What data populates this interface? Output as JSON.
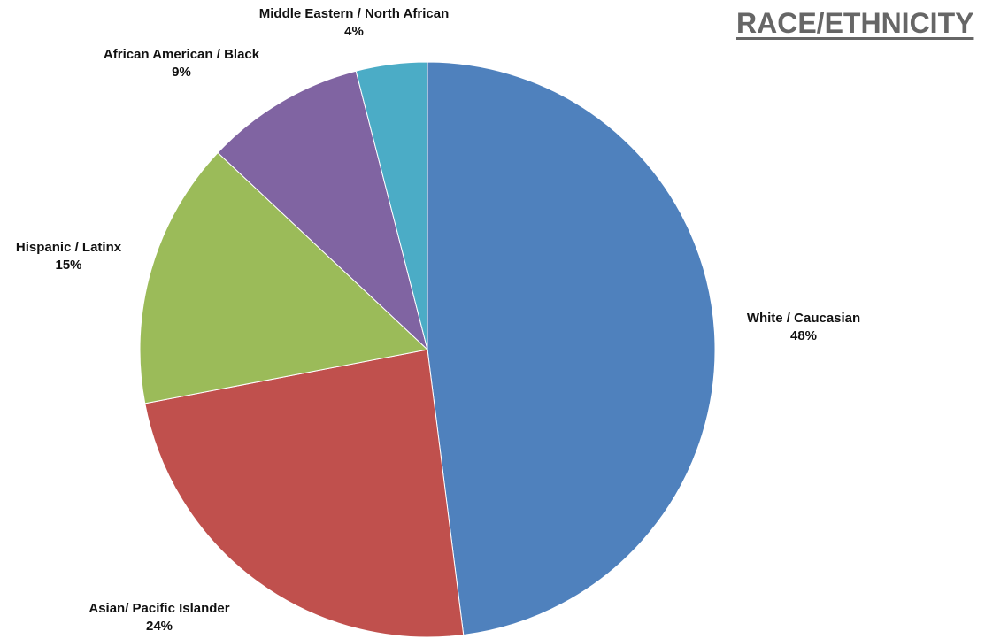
{
  "chart_data": {
    "type": "pie",
    "title": "RACE/ETHNICITY",
    "slices": [
      {
        "label": "White / Caucasian",
        "value": 48,
        "value_label": "48%",
        "color": "#4f81bd"
      },
      {
        "label": "Asian/ Pacific Islander",
        "value": 24,
        "value_label": "24%",
        "color": "#c0504d"
      },
      {
        "label": "Hispanic / Latinx",
        "value": 15,
        "value_label": "15%",
        "color": "#9bbb59"
      },
      {
        "label": "African American / Black",
        "value": 9,
        "value_label": "9%",
        "color": "#8064a2"
      },
      {
        "label": "Middle Eastern / North African",
        "value": 4,
        "value_label": "4%",
        "color": "#4bacc6"
      }
    ],
    "start_angle": "12 o'clock",
    "direction": "clockwise",
    "legend": "none",
    "labels": "outside"
  }
}
